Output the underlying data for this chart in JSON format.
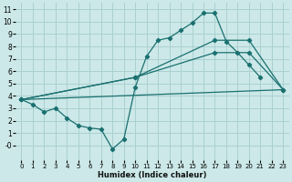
{
  "xlabel": "Humidex (Indice chaleur)",
  "bg_color": "#cce8e8",
  "grid_color": "#aad0d0",
  "line_color": "#1a7070",
  "xlim": [
    -0.5,
    23.5
  ],
  "ylim": [
    -1.2,
    11.5
  ],
  "yticks": [
    0,
    1,
    2,
    3,
    4,
    5,
    6,
    7,
    8,
    9,
    10,
    11
  ],
  "xticks": [
    0,
    1,
    2,
    3,
    4,
    5,
    6,
    7,
    8,
    9,
    10,
    11,
    12,
    13,
    14,
    15,
    16,
    17,
    18,
    19,
    20,
    21,
    22,
    23
  ],
  "line1": {
    "x": [
      0,
      1,
      2,
      3,
      4,
      5,
      6,
      7,
      8,
      9,
      10,
      11,
      12,
      13,
      14,
      15,
      16,
      17,
      18,
      19,
      20,
      21
    ],
    "y": [
      3.7,
      3.3,
      2.7,
      3.0,
      2.2,
      1.6,
      1.4,
      1.3,
      -0.3,
      0.5,
      4.7,
      7.2,
      8.5,
      8.7,
      9.3,
      9.9,
      10.7,
      10.7,
      8.4,
      7.5,
      6.5,
      5.5
    ]
  },
  "line2": {
    "x": [
      0,
      23
    ],
    "y": [
      3.7,
      4.5
    ]
  },
  "line3": {
    "x": [
      0,
      10,
      17,
      20,
      23
    ],
    "y": [
      3.7,
      5.5,
      7.5,
      7.5,
      4.5
    ]
  },
  "line4": {
    "x": [
      0,
      10,
      17,
      20,
      23
    ],
    "y": [
      3.7,
      5.5,
      8.5,
      8.5,
      4.5
    ]
  }
}
